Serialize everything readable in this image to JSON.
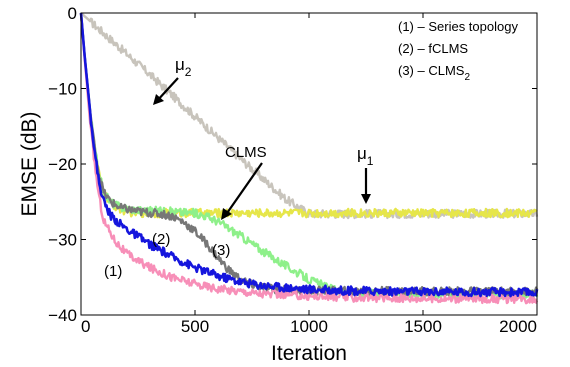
{
  "chart_data": {
    "type": "line",
    "title": "",
    "xlabel": "Iteration",
    "ylabel": "EMSE (dB)",
    "xlim": [
      0,
      2000
    ],
    "ylim": [
      -40,
      0
    ],
    "xticks": [
      0,
      500,
      1000,
      1500,
      2000
    ],
    "yticks": [
      0,
      -10,
      -20,
      -30,
      -40
    ],
    "grid": false,
    "legend": {
      "placement": "top-right",
      "entries": [
        "(1) – Series topology",
        "(2) – fCLMS",
        "(3) – CLMS"
      ],
      "entry3_subscript": "2"
    },
    "annotations": {
      "mu2": "μ",
      "mu2_sub": "2",
      "mu1": "μ",
      "mu1_sub": "1",
      "clms": "CLMS",
      "label1": "(1)",
      "label2": "(2)",
      "label3": "(3)"
    },
    "series": [
      {
        "key": "mu2",
        "color": "#c8c4bc",
        "points": [
          [
            0,
            0
          ],
          [
            100,
            -2.7
          ],
          [
            200,
            -5.4
          ],
          [
            300,
            -8.1
          ],
          [
            400,
            -10.9
          ],
          [
            500,
            -13.7
          ],
          [
            600,
            -16.5
          ],
          [
            700,
            -19.3
          ],
          [
            800,
            -22.0
          ],
          [
            900,
            -24.7
          ],
          [
            1000,
            -26.6
          ]
        ]
      },
      {
        "key": "mu1",
        "color": "#e6e64a",
        "points": [
          [
            0,
            0
          ],
          [
            20,
            -7
          ],
          [
            40,
            -13
          ],
          [
            60,
            -18
          ],
          [
            80,
            -21.5
          ],
          [
            100,
            -23.8
          ],
          [
            130,
            -25.2
          ],
          [
            170,
            -26.0
          ],
          [
            220,
            -26.4
          ],
          [
            300,
            -26.5
          ],
          [
            2000,
            -26.5
          ]
        ]
      },
      {
        "key": "clms2",
        "color": "#8ef08a",
        "points": [
          [
            0,
            0
          ],
          [
            20,
            -7
          ],
          [
            40,
            -13
          ],
          [
            60,
            -18
          ],
          [
            80,
            -21.5
          ],
          [
            100,
            -23.8
          ],
          [
            130,
            -25.0
          ],
          [
            170,
            -25.7
          ],
          [
            250,
            -26.1
          ],
          [
            400,
            -26.3
          ],
          [
            500,
            -26.5
          ],
          [
            550,
            -26.9
          ],
          [
            600,
            -27.6
          ],
          [
            700,
            -29.5
          ],
          [
            800,
            -31.6
          ],
          [
            900,
            -33.5
          ],
          [
            1000,
            -35.3
          ],
          [
            1100,
            -36.6
          ],
          [
            1200,
            -37.1
          ],
          [
            2000,
            -37.3
          ]
        ]
      },
      {
        "key": "fclms",
        "color": "#777777",
        "points": [
          [
            0,
            0
          ],
          [
            20,
            -7
          ],
          [
            40,
            -13
          ],
          [
            60,
            -18
          ],
          [
            80,
            -21.5
          ],
          [
            100,
            -23.8
          ],
          [
            130,
            -25.0
          ],
          [
            170,
            -25.8
          ],
          [
            250,
            -26.3
          ],
          [
            350,
            -26.6
          ],
          [
            400,
            -26.9
          ],
          [
            450,
            -27.7
          ],
          [
            500,
            -28.9
          ],
          [
            550,
            -30.5
          ],
          [
            600,
            -32.4
          ],
          [
            650,
            -34.1
          ],
          [
            700,
            -35.3
          ],
          [
            760,
            -36.1
          ],
          [
            850,
            -36.6
          ],
          [
            1000,
            -36.8
          ],
          [
            2000,
            -36.9
          ]
        ]
      },
      {
        "key": "series_topology",
        "color": "#f78fb8",
        "points": [
          [
            0,
            0
          ],
          [
            20,
            -7.5
          ],
          [
            40,
            -14.5
          ],
          [
            60,
            -20
          ],
          [
            80,
            -24.5
          ],
          [
            100,
            -27.5
          ],
          [
            150,
            -30.2
          ],
          [
            200,
            -31.9
          ],
          [
            300,
            -33.7
          ],
          [
            400,
            -35.0
          ],
          [
            500,
            -35.9
          ],
          [
            600,
            -36.5
          ],
          [
            800,
            -37.2
          ],
          [
            1000,
            -37.5
          ],
          [
            1200,
            -37.7
          ],
          [
            1500,
            -37.8
          ],
          [
            2000,
            -37.9
          ]
        ]
      },
      {
        "key": "rls",
        "color": "#1515dd",
        "points": [
          [
            0,
            0
          ],
          [
            20,
            -7
          ],
          [
            40,
            -13
          ],
          [
            60,
            -18.5
          ],
          [
            80,
            -22.5
          ],
          [
            100,
            -25.0
          ],
          [
            130,
            -26.8
          ],
          [
            170,
            -27.9
          ],
          [
            200,
            -28.6
          ],
          [
            300,
            -30.6
          ],
          [
            400,
            -32.3
          ],
          [
            500,
            -33.7
          ],
          [
            600,
            -34.8
          ],
          [
            700,
            -35.6
          ],
          [
            800,
            -36.1
          ],
          [
            1000,
            -36.6
          ],
          [
            1200,
            -36.8
          ],
          [
            1500,
            -36.9
          ],
          [
            2000,
            -37.0
          ]
        ]
      }
    ]
  }
}
